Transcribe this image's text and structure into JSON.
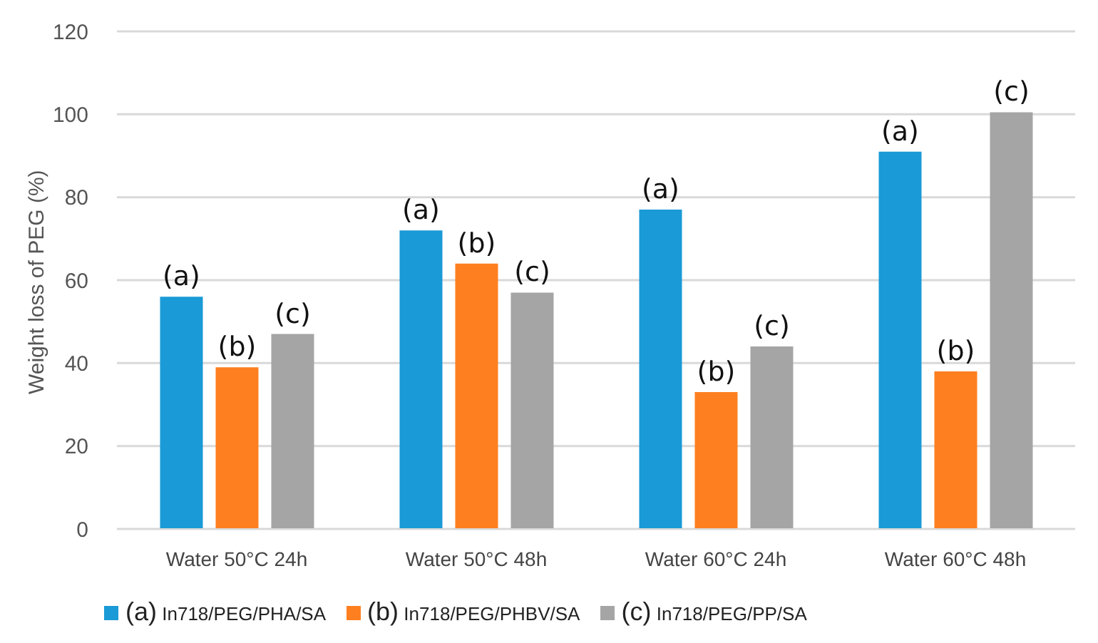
{
  "chart_data": {
    "type": "bar",
    "ylabel": "Weight loss of PEG (%)",
    "categories": [
      "Water 50°C 24h",
      "Water 50°C 48h",
      "Water 60°C 24h",
      "Water 60°C 48h"
    ],
    "series": [
      {
        "name": "(a) In718/PEG/PHA/SA",
        "color": "#1a9ad6",
        "values": [
          56,
          72,
          77,
          91
        ],
        "value_labels": [
          "(a)",
          "(a)",
          "(a)",
          "(a)"
        ]
      },
      {
        "name": "(b) In718/PEG/PHBV/SA",
        "color": "#fd7f20",
        "values": [
          39,
          64,
          33,
          38
        ],
        "value_labels": [
          "(b)",
          "(b)",
          "(b)",
          "(b)"
        ]
      },
      {
        "name": "(c) In718/PEG/PP/SA",
        "color": "#a5a5a5",
        "values": [
          47,
          57,
          44,
          100.5
        ],
        "value_labels": [
          "(c)",
          "(c)",
          "(c)",
          "(c)"
        ]
      }
    ],
    "ylim": [
      0,
      120
    ],
    "yticks": [
      0,
      20,
      40,
      60,
      80,
      100,
      120
    ],
    "grid": "y",
    "legend": "bottom"
  }
}
